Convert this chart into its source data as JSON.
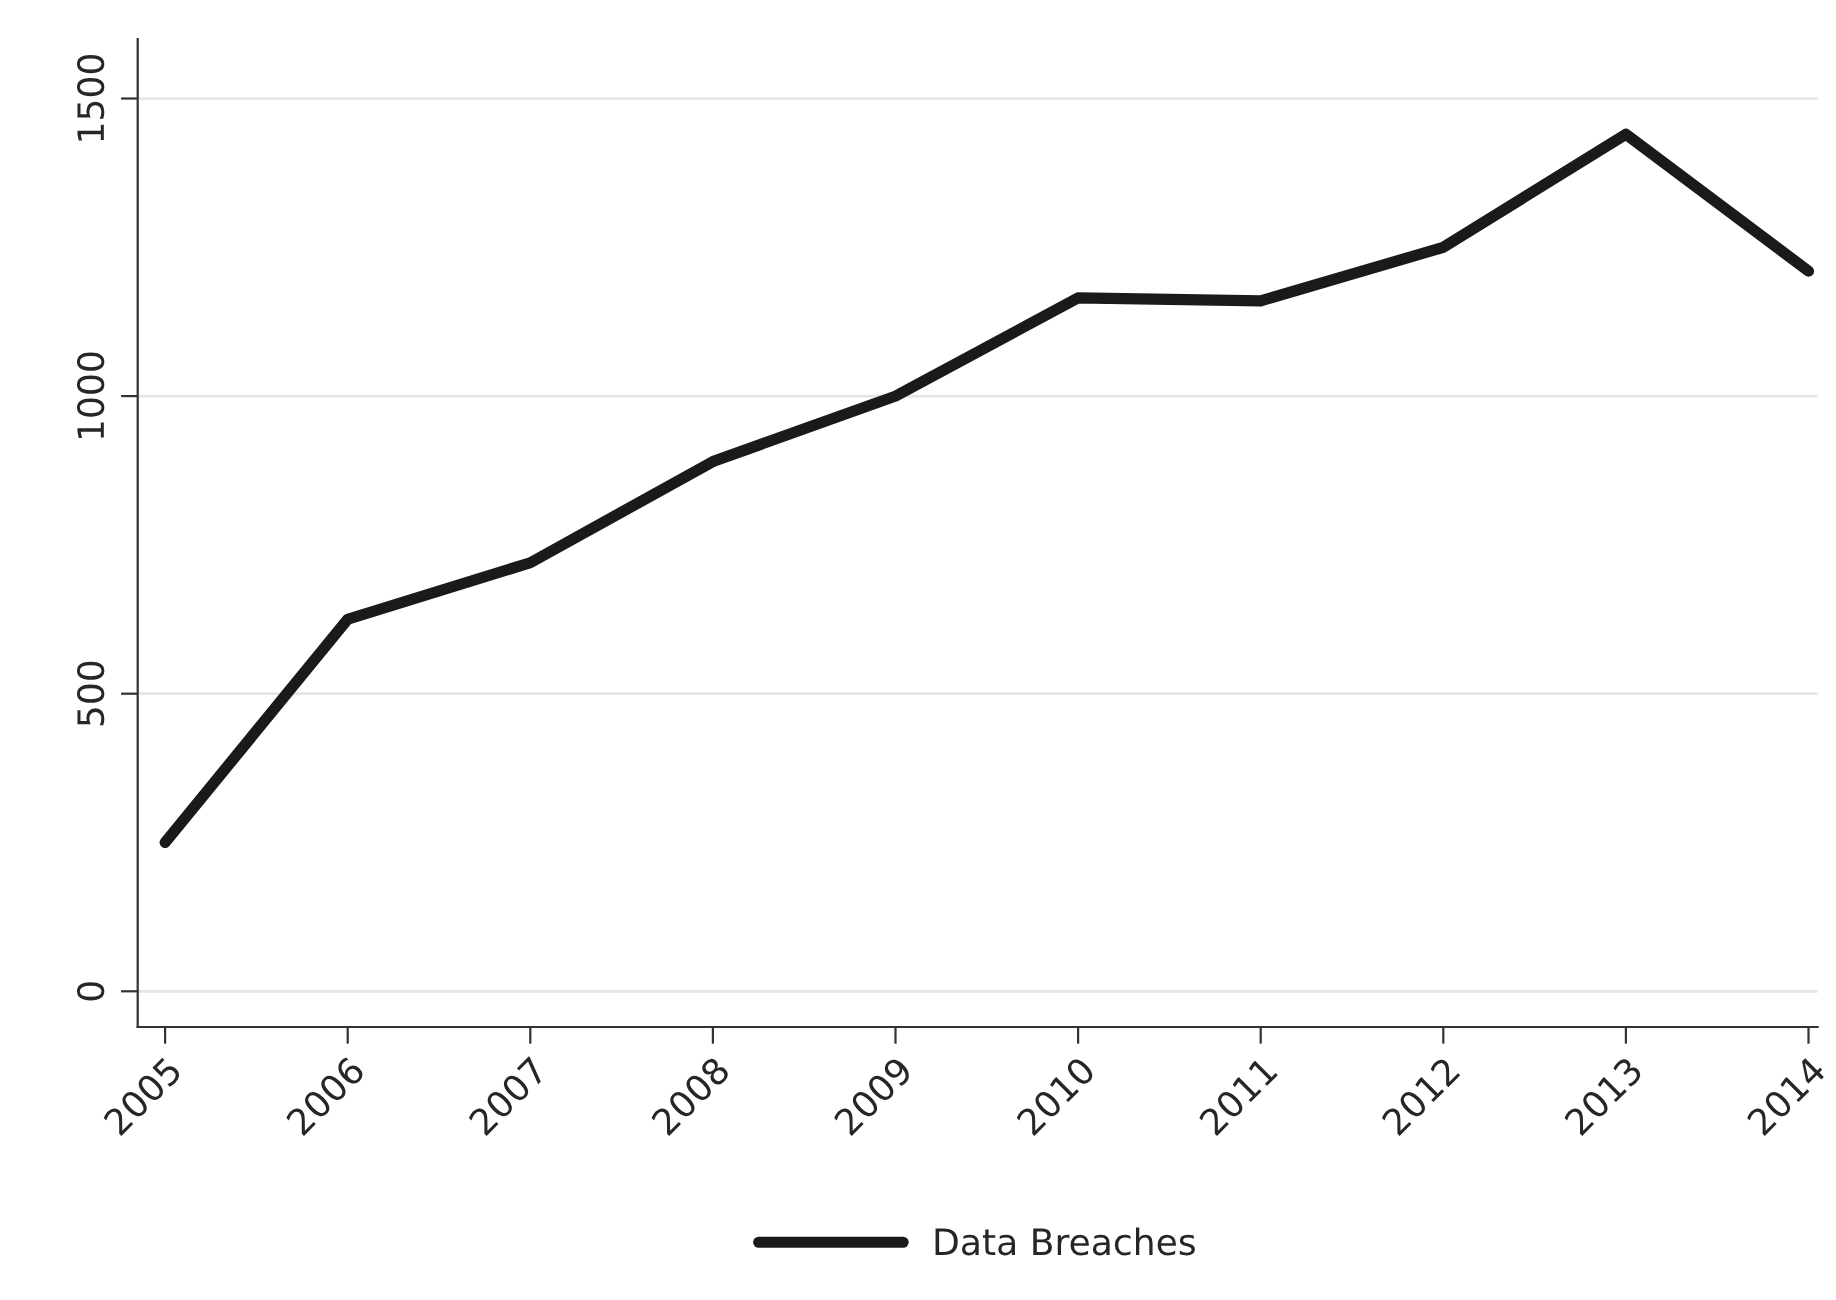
{
  "chart_data": {
    "type": "line",
    "categories": [
      "2005",
      "2006",
      "2007",
      "2008",
      "2009",
      "2010",
      "2011",
      "2012",
      "2013",
      "2014"
    ],
    "series": [
      {
        "name": "Data Breaches",
        "color": "#1a1a1a",
        "values": [
          250,
          625,
          720,
          890,
          1000,
          1165,
          1160,
          1250,
          1440,
          1210
        ]
      }
    ],
    "ylim": [
      -60,
      1600
    ],
    "yticks": [
      0,
      500,
      1000,
      1500
    ],
    "grid": "y",
    "legend": "bottom",
    "marker": "none",
    "line_style": "solid"
  }
}
